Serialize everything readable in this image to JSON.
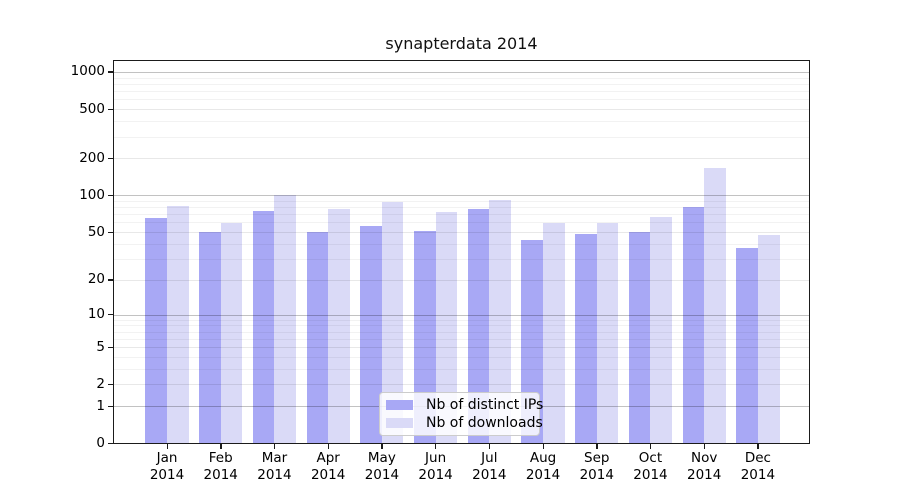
{
  "title": "synapterdata 2014",
  "chart_data": {
    "type": "bar",
    "title": "synapterdata 2014",
    "x_months": [
      "Jan",
      "Feb",
      "Mar",
      "Apr",
      "May",
      "Jun",
      "Jul",
      "Aug",
      "Sep",
      "Oct",
      "Nov",
      "Dec"
    ],
    "x_year": "2014",
    "series": [
      {
        "name": "Nb of distinct IPs",
        "color": "#a8a8f5",
        "values": [
          65,
          50,
          74,
          50,
          56,
          51,
          77,
          43,
          48,
          50,
          80,
          37
        ]
      },
      {
        "name": "Nb of downloads",
        "color": "#dadaf7",
        "values": [
          82,
          59,
          100,
          77,
          88,
          73,
          92,
          59,
          59,
          66,
          167,
          47
        ]
      }
    ],
    "y_ticks": [
      0,
      1,
      2,
      5,
      10,
      20,
      50,
      100,
      200,
      500,
      1000
    ],
    "y_scale": "log1p",
    "ylim": [
      0,
      1230
    ],
    "grid": "horizontal major + log minor lines",
    "legend_position": "bottom-center",
    "background_color": "#ffffff",
    "axis_color": "#1b1b1b"
  }
}
